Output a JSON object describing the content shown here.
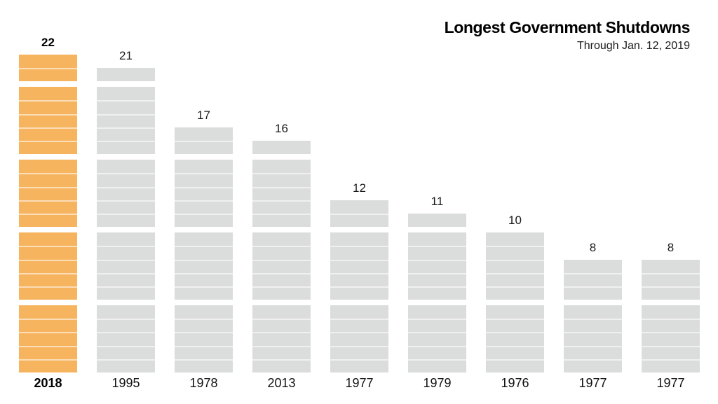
{
  "header": {
    "title": "Longest Government Shutdowns",
    "subtitle": "Through Jan. 12, 2019"
  },
  "chart_data": {
    "type": "bar",
    "title": "Longest Government Shutdowns",
    "subtitle": "Through Jan. 12, 2019",
    "unit": "days",
    "categories": [
      "2018",
      "1995",
      "1978",
      "2013",
      "1977",
      "1979",
      "1976",
      "1977",
      "1977"
    ],
    "values": [
      22,
      21,
      17,
      16,
      12,
      11,
      10,
      8,
      8
    ],
    "value_labels": [
      "22",
      "21",
      "17",
      "16",
      "12",
      "11",
      "10",
      "8",
      "8"
    ],
    "highlighted_index": 0,
    "segment_group_size": 5,
    "legend": "none",
    "gridlines": false,
    "axes": "none",
    "colors": {
      "highlight_bar": "#F6B45F",
      "default_bar": "#DBDDDC",
      "segment_separator": "rgba(255,255,255,0.55)",
      "title_text": "#000000",
      "label_text": "#1a1a1a"
    }
  }
}
